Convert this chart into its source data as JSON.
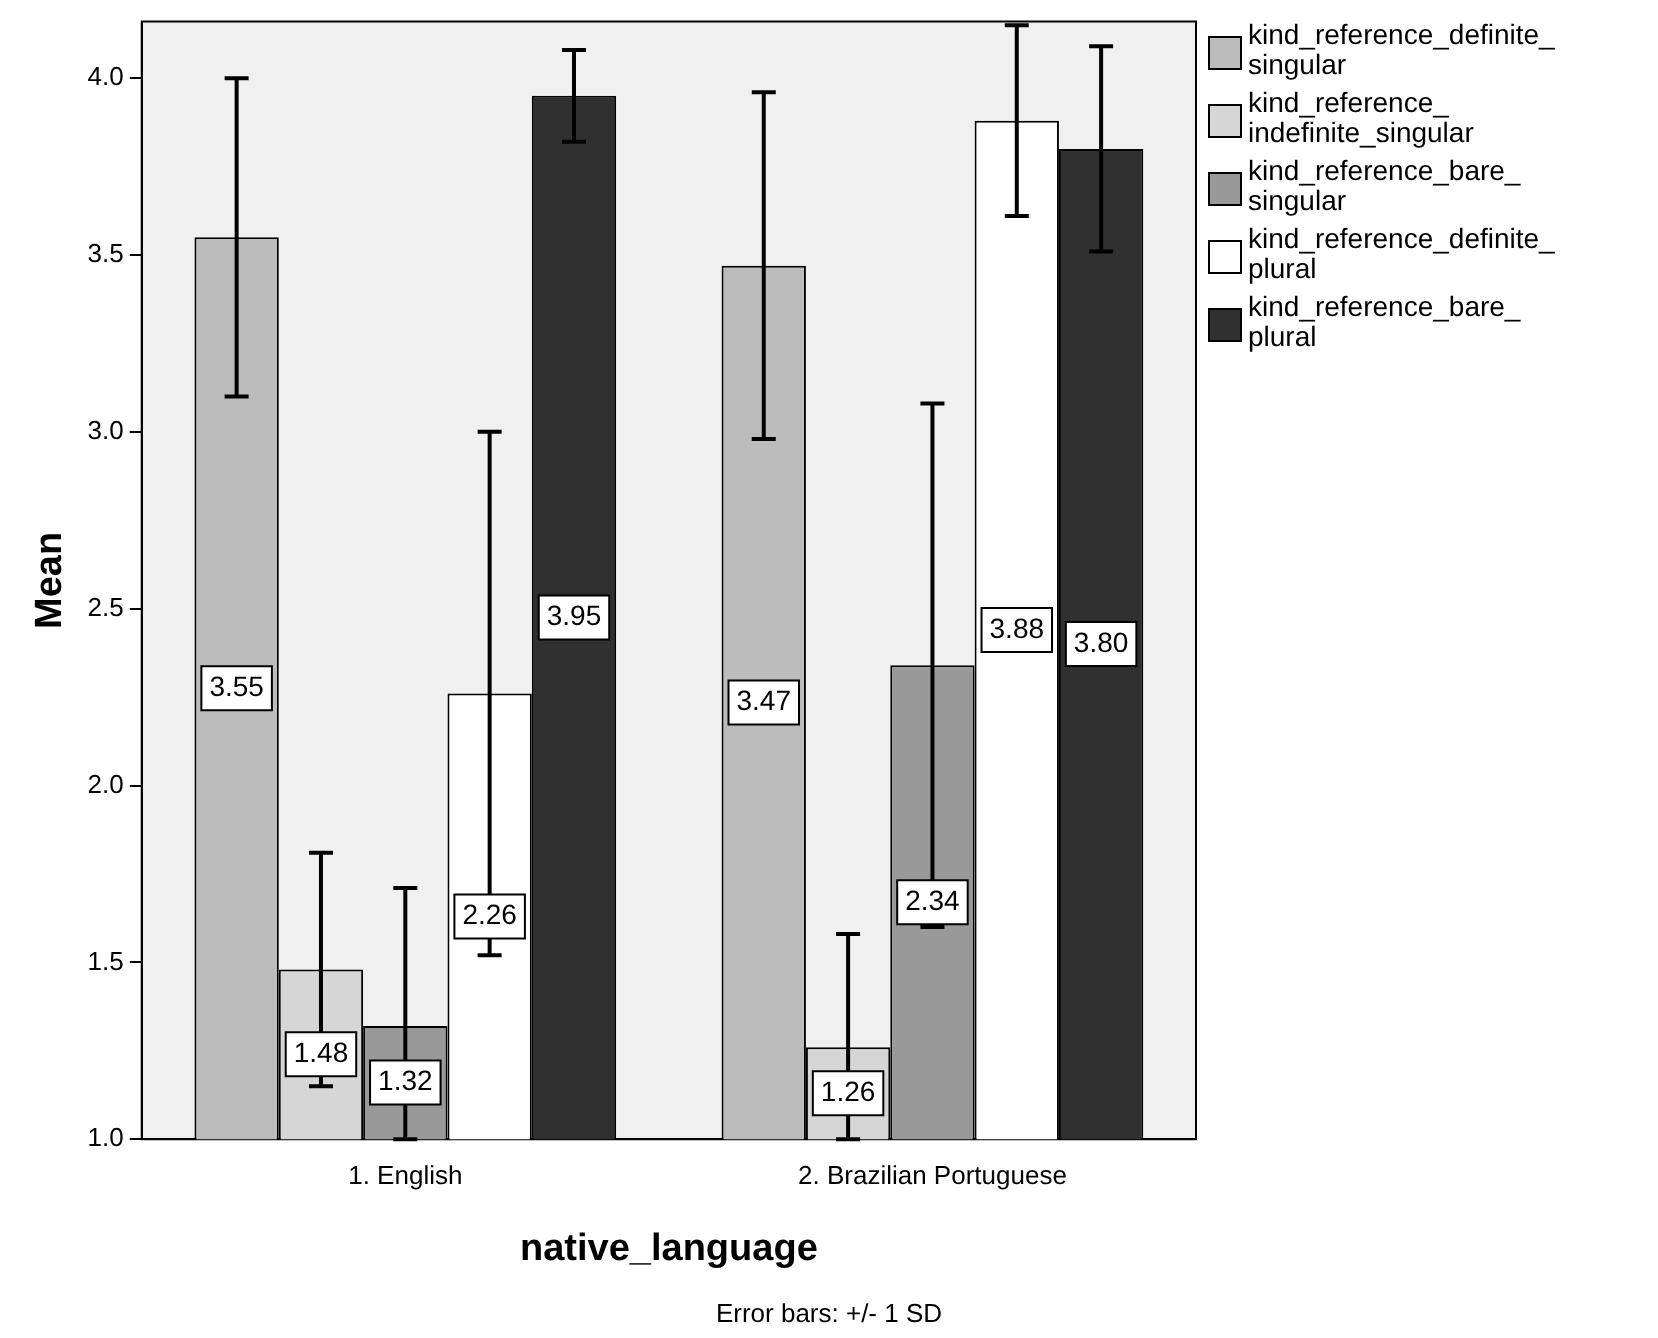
{
  "chart_data": {
    "type": "bar",
    "xlabel": "native_language",
    "ylabel": "Mean",
    "categories": [
      "1. English",
      "2. Brazilian Portuguese"
    ],
    "series": [
      {
        "name": "kind_reference_definite_singular",
        "color": "#bcbcbc",
        "values": [
          3.55,
          3.47
        ],
        "errors": [
          0.45,
          0.49
        ],
        "value_labels": [
          "3.55",
          "3.47"
        ]
      },
      {
        "name": "kind_reference_indefinite_singular",
        "color": "#d6d6d6",
        "values": [
          1.48,
          1.26
        ],
        "errors": [
          0.33,
          [
            1.0,
            1.58
          ]
        ],
        "value_labels": [
          "1.48",
          "1.26"
        ]
      },
      {
        "name": "kind_reference_bare_singular",
        "color": "#999999",
        "values": [
          1.32,
          2.34
        ],
        "errors": [
          [
            1.0,
            1.71
          ],
          0.74
        ],
        "value_labels": [
          "1.32",
          "2.34"
        ]
      },
      {
        "name": "kind_reference_definite_plural",
        "color": "#ffffff",
        "values": [
          2.26,
          3.88
        ],
        "errors": [
          0.74,
          0.27
        ],
        "value_labels": [
          "2.26",
          "3.88"
        ]
      },
      {
        "name": "kind_reference_bare_plural",
        "color": "#303030",
        "values": [
          3.95,
          3.8
        ],
        "errors": [
          0.13,
          0.29
        ],
        "value_labels": [
          "3.95",
          "3.80"
        ]
      }
    ],
    "ylim": [
      1.0,
      4.16
    ],
    "yticks": [
      {
        "value": 1.0,
        "label": "1.0"
      },
      {
        "value": 1.5,
        "label": "1.5"
      },
      {
        "value": 2.0,
        "label": "2.0"
      },
      {
        "value": 2.5,
        "label": "2.5"
      },
      {
        "value": 3.0,
        "label": "3.0"
      },
      {
        "value": 3.5,
        "label": "3.5"
      },
      {
        "value": 4.0,
        "label": "4.0"
      }
    ],
    "grid": false,
    "legend": "right",
    "annotations": [
      "Error bars: +/- 1 SD"
    ]
  }
}
